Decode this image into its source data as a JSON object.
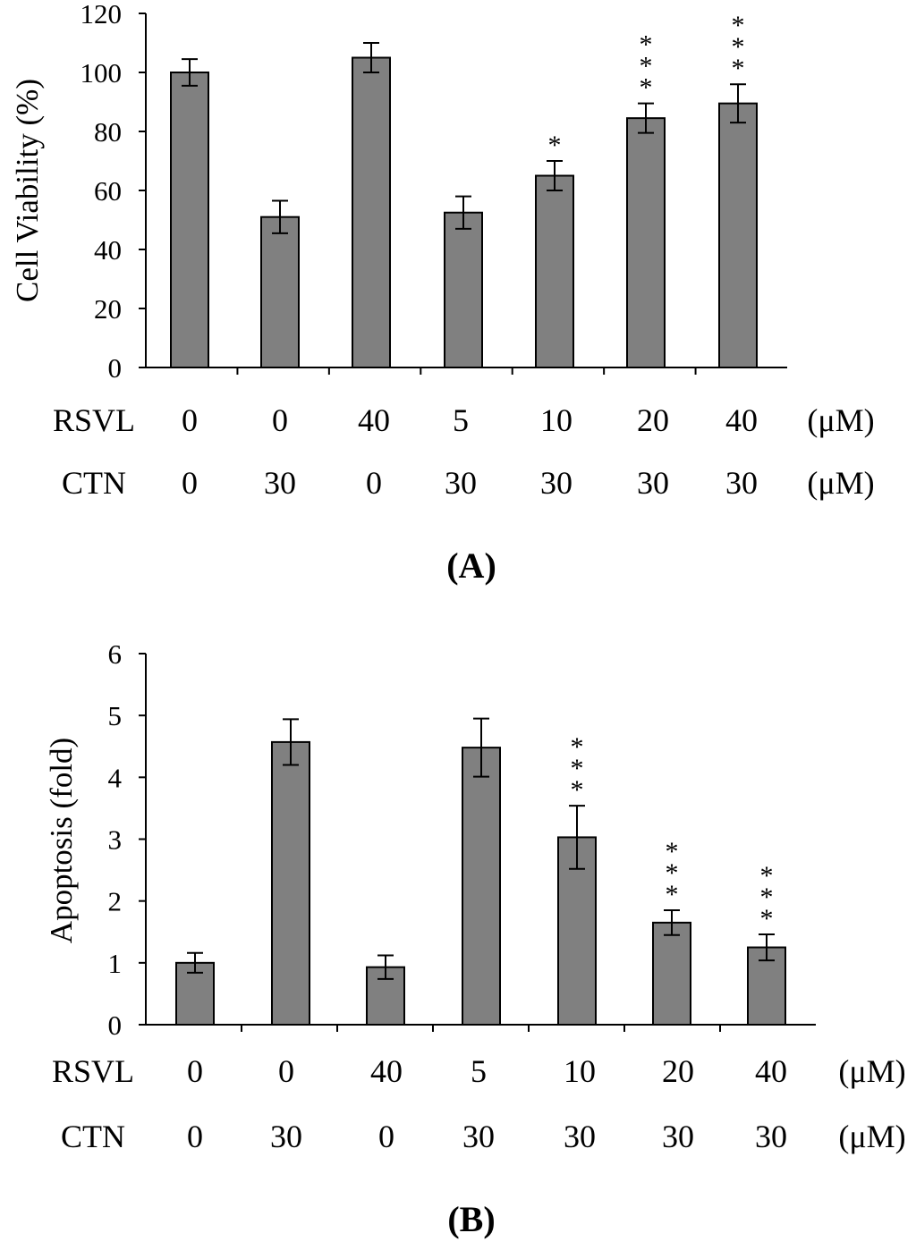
{
  "colors": {
    "bar": "#808080",
    "axis": "#000000",
    "background": "#ffffff"
  },
  "chart_data": [
    {
      "type": "bar",
      "panel_label": "(A)",
      "title": "",
      "xlabel": "",
      "ylabel": "Cell Viability (%)",
      "ylim": [
        0,
        120
      ],
      "yticks": [
        0,
        20,
        40,
        60,
        80,
        100,
        120
      ],
      "grid": false,
      "values": [
        100,
        51,
        105,
        52.5,
        65,
        84.5,
        89.5
      ],
      "errors": [
        4.5,
        5.5,
        5,
        5.5,
        5,
        5,
        6.5
      ],
      "significance": [
        "",
        "",
        "",
        "",
        "*",
        "***",
        "***"
      ],
      "conditions": [
        {
          "label": "RSVL",
          "values": [
            "0",
            "0",
            "40",
            "5",
            "10",
            "20",
            "40"
          ],
          "unit": "(μM)"
        },
        {
          "label": "CTN",
          "values": [
            "0",
            "30",
            "0",
            "30",
            "30",
            "30",
            "30"
          ],
          "unit": "(μM)"
        }
      ]
    },
    {
      "type": "bar",
      "panel_label": "(B)",
      "title": "",
      "xlabel": "",
      "ylabel": "Apoptosis (fold)",
      "ylim": [
        0,
        6
      ],
      "yticks": [
        0,
        1,
        2,
        3,
        4,
        5,
        6
      ],
      "grid": false,
      "values": [
        1.0,
        4.57,
        0.93,
        4.48,
        3.03,
        1.65,
        1.25
      ],
      "errors": [
        0.16,
        0.37,
        0.19,
        0.47,
        0.51,
        0.2,
        0.21
      ],
      "significance": [
        "",
        "",
        "",
        "",
        "***",
        "***",
        "***"
      ],
      "conditions": [
        {
          "label": "RSVL",
          "values": [
            "0",
            "0",
            "40",
            "5",
            "10",
            "20",
            "40"
          ],
          "unit": "(μM)"
        },
        {
          "label": "CTN",
          "values": [
            "0",
            "30",
            "0",
            "30",
            "30",
            "30",
            "30"
          ],
          "unit": "(μM)"
        }
      ]
    }
  ]
}
